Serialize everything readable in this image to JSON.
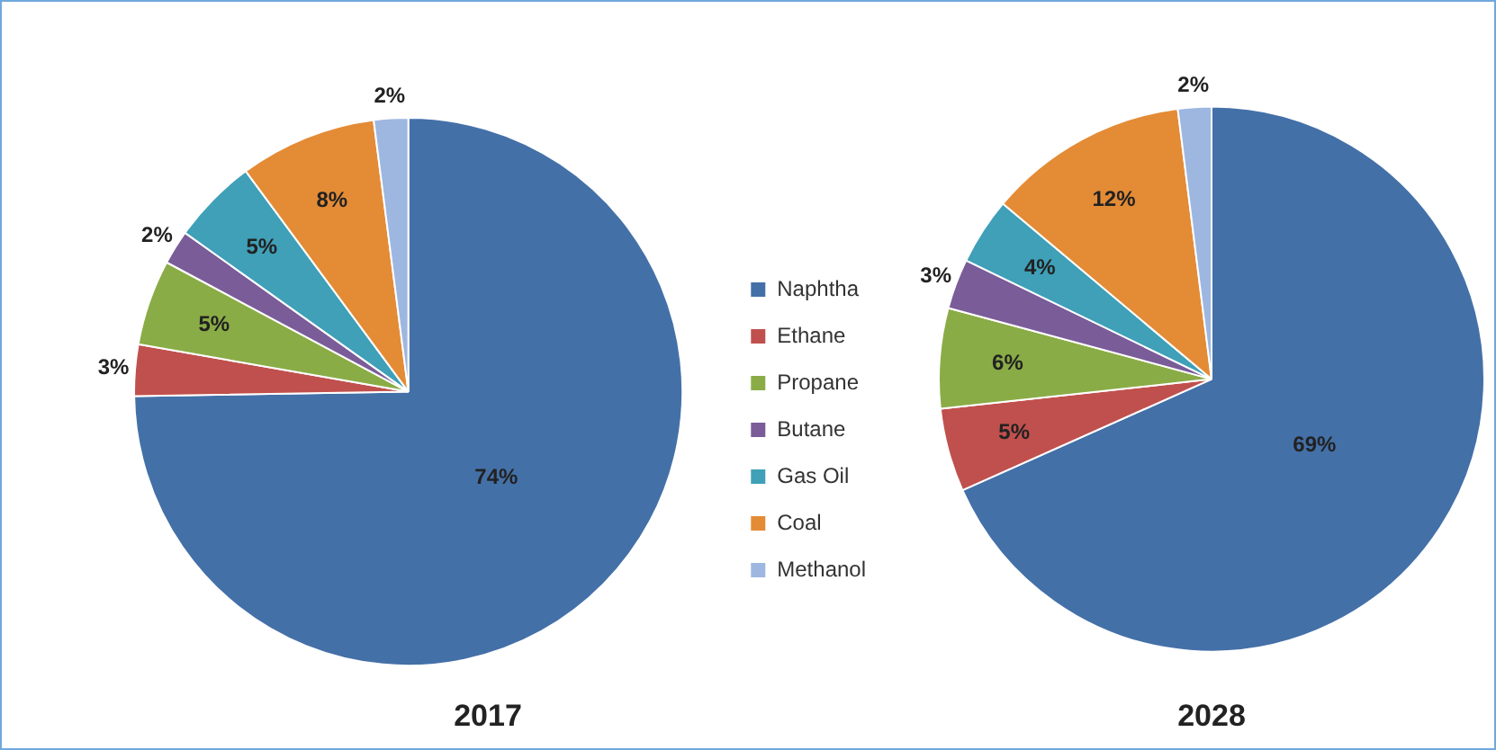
{
  "chart_data": [
    {
      "type": "pie",
      "title": "2017",
      "categories": [
        "Naphtha",
        "Ethane",
        "Propane",
        "Butane",
        "Gas Oil",
        "Coal",
        "Methanol"
      ],
      "values": [
        74,
        3,
        5,
        2,
        5,
        8,
        2
      ],
      "value_labels": [
        "74%",
        "3%",
        "5%",
        "2%",
        "5%",
        "8%",
        "2%"
      ],
      "colors": [
        "#4470a8",
        "#c0504d",
        "#8aac46",
        "#7a5c99",
        "#3fa0b8",
        "#e48b36",
        "#9db7e0"
      ],
      "legend": "right"
    },
    {
      "type": "pie",
      "title": "2028",
      "categories": [
        null,
        null,
        null,
        null,
        null,
        null,
        null
      ],
      "values": [
        69,
        5,
        6,
        3,
        4,
        12,
        2
      ],
      "value_labels": [
        "69%",
        "5%",
        "6%",
        "3%",
        "4%",
        "12%",
        "2%"
      ],
      "colors": [
        "#4470a8",
        "#c0504d",
        "#8aac46",
        "#7a5c99",
        "#3fa0b8",
        "#e48b36",
        "#9db7e0"
      ]
    }
  ]
}
